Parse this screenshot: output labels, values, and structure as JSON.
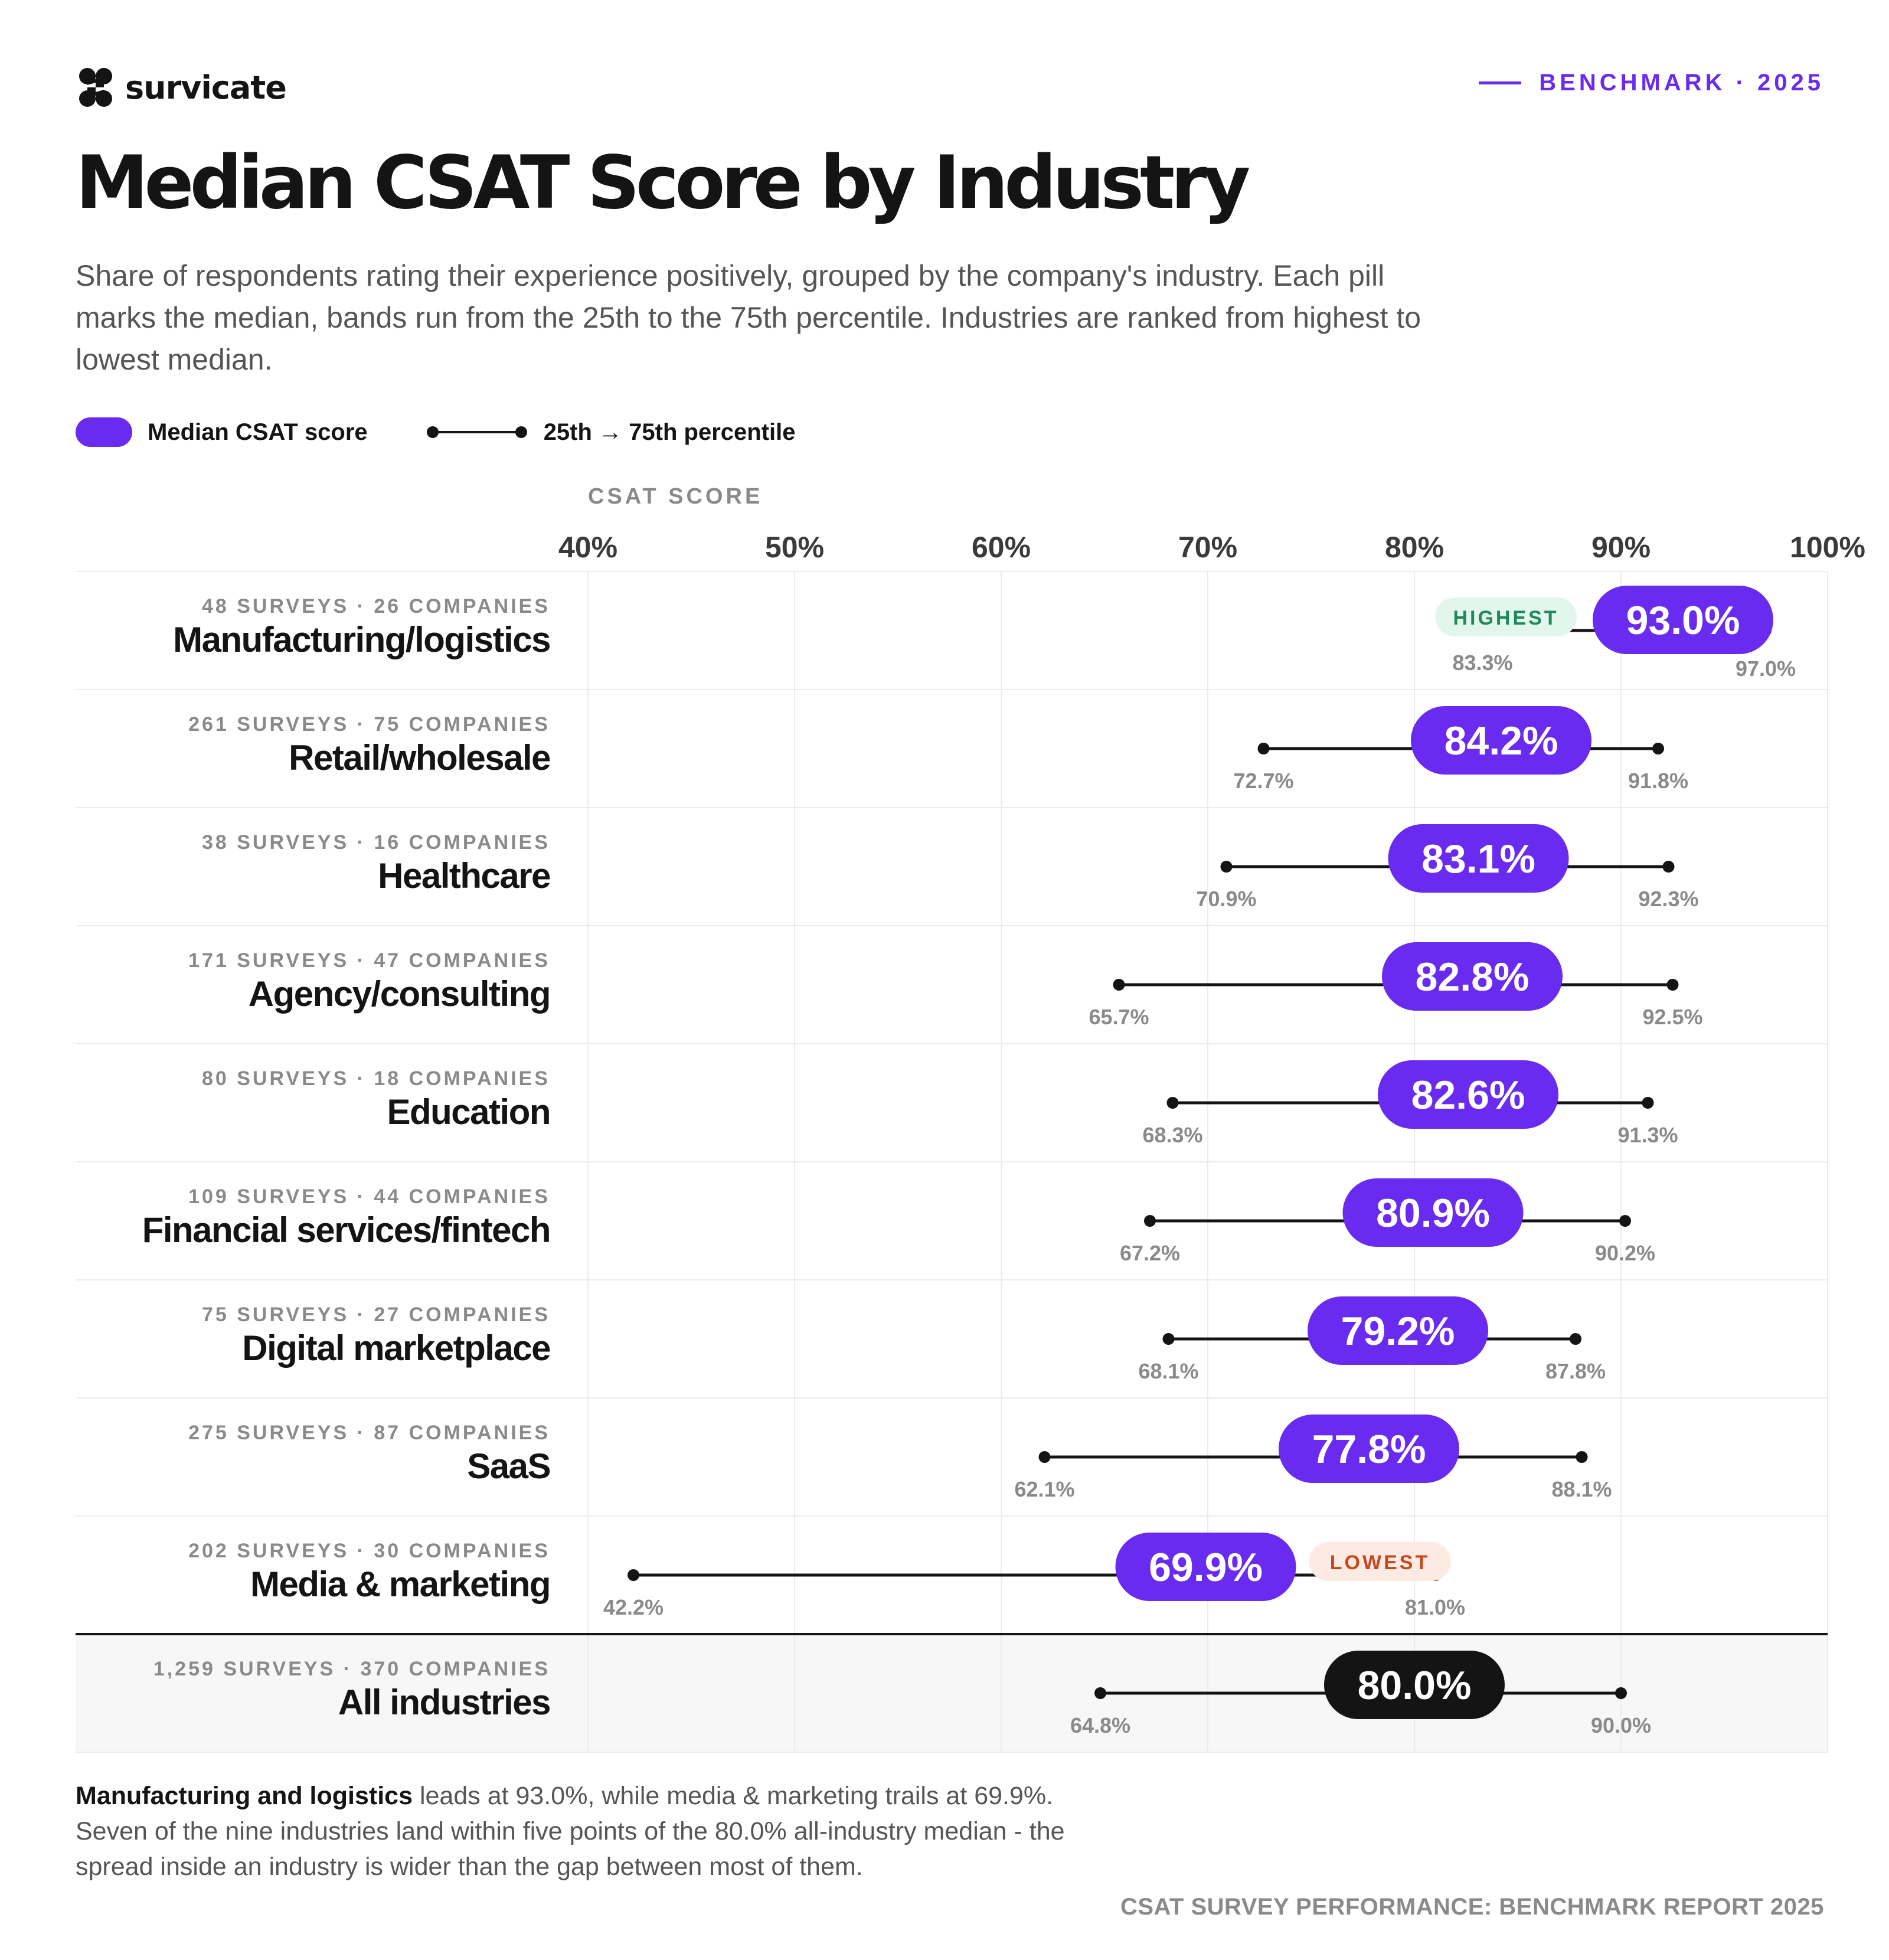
{
  "brand": {
    "name": "survicate",
    "logo_icon": "survicate-logo-icon"
  },
  "header": {
    "badge": "BENCHMARK · 2025"
  },
  "title": "Median CSAT Score by Industry",
  "subtitle": "Share of respondents rating their experience positively, grouped by the company's industry. Each pill marks the median, bands run from the 25th to the 75th percentile. Industries are ranked from highest to lowest median.",
  "legend": {
    "median_label": "Median CSAT score",
    "band_label": "25th → 75th percentile"
  },
  "colors": {
    "accent": "#6a2bf0",
    "ink": "#141414",
    "muted": "#8a8a8a",
    "highest_bg": "#e3f6ee",
    "highest_text": "#1e8a5a",
    "lowest_bg": "#fdeae2",
    "lowest_text": "#c8471d"
  },
  "chart_data": {
    "type": "range",
    "xlabel": "CSAT SCORE",
    "x_ticks": [
      "40%",
      "50%",
      "60%",
      "70%",
      "80%",
      "90%",
      "100%"
    ],
    "xlim": [
      40,
      100
    ],
    "grid": true,
    "series": [
      {
        "name": "Manufacturing/logistics",
        "meta": "48 SURVEYS · 26 COMPANIES",
        "median": 93.0,
        "p25": 83.3,
        "p75": 97.0,
        "median_label": "93.0%",
        "p25_label": "83.3%",
        "p75_label": "97.0%",
        "tag": "HIGHEST"
      },
      {
        "name": "Retail/wholesale",
        "meta": "261 SURVEYS · 75 COMPANIES",
        "median": 84.2,
        "p25": 72.7,
        "p75": 91.8,
        "median_label": "84.2%",
        "p25_label": "72.7%",
        "p75_label": "91.8%",
        "tag": ""
      },
      {
        "name": "Healthcare",
        "meta": "38 SURVEYS · 16 COMPANIES",
        "median": 83.1,
        "p25": 70.9,
        "p75": 92.3,
        "median_label": "83.1%",
        "p25_label": "70.9%",
        "p75_label": "92.3%",
        "tag": ""
      },
      {
        "name": "Agency/consulting",
        "meta": "171 SURVEYS · 47 COMPANIES",
        "median": 82.8,
        "p25": 65.7,
        "p75": 92.5,
        "median_label": "82.8%",
        "p25_label": "65.7%",
        "p75_label": "92.5%",
        "tag": ""
      },
      {
        "name": "Education",
        "meta": "80 SURVEYS · 18 COMPANIES",
        "median": 82.6,
        "p25": 68.3,
        "p75": 91.3,
        "median_label": "82.6%",
        "p25_label": "68.3%",
        "p75_label": "91.3%",
        "tag": ""
      },
      {
        "name": "Financial services/fintech",
        "meta": "109 SURVEYS · 44 COMPANIES",
        "median": 80.9,
        "p25": 67.2,
        "p75": 90.2,
        "median_label": "80.9%",
        "p25_label": "67.2%",
        "p75_label": "90.2%",
        "tag": ""
      },
      {
        "name": "Digital marketplace",
        "meta": "75 SURVEYS · 27 COMPANIES",
        "median": 79.2,
        "p25": 68.1,
        "p75": 87.8,
        "median_label": "79.2%",
        "p25_label": "68.1%",
        "p75_label": "87.8%",
        "tag": ""
      },
      {
        "name": "SaaS",
        "meta": "275 SURVEYS · 87 COMPANIES",
        "median": 77.8,
        "p25": 62.1,
        "p75": 88.1,
        "median_label": "77.8%",
        "p25_label": "62.1%",
        "p75_label": "88.1%",
        "tag": ""
      },
      {
        "name": "Media & marketing",
        "meta": "202 SURVEYS · 30 COMPANIES",
        "median": 69.9,
        "p25": 42.2,
        "p75": 81.0,
        "median_label": "69.9%",
        "p25_label": "42.2%",
        "p75_label": "81.0%",
        "tag": "LOWEST"
      }
    ],
    "total": {
      "name": "All industries",
      "meta": "1,259 SURVEYS · 370 COMPANIES",
      "median": 80.0,
      "p25": 64.8,
      "p75": 90.0,
      "median_label": "80.0%",
      "p25_label": "64.8%",
      "p75_label": "90.0%"
    }
  },
  "footer": {
    "lead_bold": "Manufacturing and logistics",
    "lead_rest": " leads at 93.0%, while media & marketing trails at 69.9%. Seven of the nine industries land within five points of the 80.0% all-industry median - the spread inside an industry is wider than the gap between most of them.",
    "source": "CSAT SURVEY PERFORMANCE: BENCHMARK REPORT 2025"
  }
}
